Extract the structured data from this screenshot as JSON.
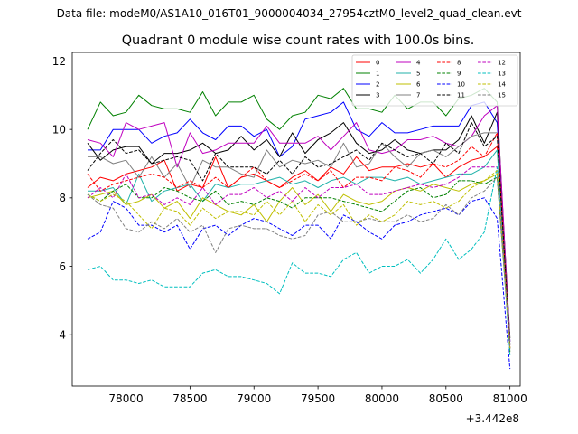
{
  "page": {
    "suptitle": "Data file: modeM0/AS1A10_016T01_9000004034_27954cztM0_level2_quad_clean.evt"
  },
  "chart_data": {
    "type": "line",
    "title": "Quadrant 0 module wise count rates with 100.0s bins.",
    "xlabel": "",
    "ylabel": "",
    "x_offset_label": "+3.442e8",
    "x_ticks": [
      78000,
      78500,
      79000,
      79500,
      80000,
      80500,
      81000
    ],
    "y_ticks": [
      4,
      6,
      8,
      10,
      12
    ],
    "xlim": [
      77580,
      81080
    ],
    "ylim": [
      2.5,
      12.25
    ],
    "grid": false,
    "legend": {
      "placement": "top-right",
      "columns": 4
    },
    "x": [
      77700,
      77800,
      77900,
      78000,
      78100,
      78200,
      78300,
      78400,
      78500,
      78600,
      78700,
      78800,
      78900,
      79000,
      79100,
      79200,
      79300,
      79400,
      79500,
      79600,
      79700,
      79800,
      79900,
      80000,
      80100,
      80200,
      80300,
      80400,
      80500,
      80600,
      80700,
      80800,
      80900,
      81000
    ],
    "series": [
      {
        "name": "0",
        "color": "#ff0000",
        "dash": "solid",
        "values": [
          8.3,
          8.6,
          8.5,
          8.7,
          8.8,
          8.9,
          9.1,
          8.2,
          8.4,
          8.3,
          9.2,
          8.3,
          8.6,
          8.7,
          8.5,
          8.3,
          8.6,
          8.8,
          8.5,
          8.9,
          8.7,
          9.2,
          8.8,
          8.9,
          8.9,
          9.0,
          8.9,
          9.0,
          8.6,
          8.9,
          9.1,
          9.2,
          9.5,
          3.6
        ]
      },
      {
        "name": "1",
        "color": "#008000",
        "dash": "solid",
        "values": [
          10.0,
          10.8,
          10.4,
          10.5,
          11.0,
          10.7,
          10.6,
          10.6,
          10.5,
          11.1,
          10.4,
          10.8,
          10.8,
          11.0,
          10.3,
          10.0,
          10.4,
          10.5,
          11.0,
          10.9,
          11.2,
          10.6,
          10.6,
          10.5,
          11.0,
          10.6,
          10.8,
          10.8,
          10.4,
          10.9,
          11.0,
          11.2,
          10.8,
          3.5
        ]
      },
      {
        "name": "2",
        "color": "#0000ff",
        "dash": "solid",
        "values": [
          9.4,
          9.4,
          10.0,
          10.0,
          10.0,
          9.6,
          9.8,
          9.9,
          10.3,
          9.9,
          9.7,
          10.1,
          10.1,
          9.8,
          10.0,
          9.2,
          9.5,
          10.3,
          10.4,
          10.5,
          10.8,
          10.0,
          9.8,
          10.2,
          9.9,
          9.9,
          10.0,
          10.1,
          10.1,
          10.1,
          10.7,
          10.8,
          10.2,
          3.8
        ]
      },
      {
        "name": "3",
        "color": "#000000",
        "dash": "solid",
        "values": [
          9.6,
          9.1,
          9.4,
          9.5,
          9.5,
          9.0,
          9.3,
          9.3,
          9.4,
          9.6,
          9.3,
          9.4,
          9.8,
          9.4,
          9.7,
          9.2,
          9.9,
          9.3,
          9.7,
          9.9,
          10.2,
          9.6,
          9.3,
          9.4,
          9.7,
          9.4,
          9.3,
          9.4,
          9.4,
          9.7,
          10.4,
          9.6,
          10.5,
          3.9
        ]
      },
      {
        "name": "4",
        "color": "#bf00bf",
        "dash": "solid",
        "values": [
          9.7,
          9.6,
          9.2,
          10.2,
          10.0,
          10.1,
          10.2,
          8.9,
          9.9,
          9.3,
          9.4,
          9.6,
          9.6,
          9.6,
          10.1,
          9.6,
          9.6,
          9.6,
          9.8,
          9.4,
          9.8,
          10.2,
          9.4,
          9.3,
          9.4,
          9.7,
          9.7,
          9.8,
          9.6,
          9.5,
          9.8,
          10.4,
          10.7,
          3.8
        ]
      },
      {
        "name": "5",
        "color": "#20b2aa",
        "dash": "solid",
        "values": [
          8.2,
          8.2,
          8.3,
          7.8,
          8.7,
          7.9,
          8.2,
          8.3,
          8.4,
          7.9,
          8.4,
          8.3,
          8.4,
          8.4,
          8.5,
          8.6,
          8.4,
          8.5,
          8.3,
          8.5,
          8.6,
          8.4,
          8.6,
          8.6,
          8.5,
          8.6,
          8.4,
          8.5,
          8.6,
          8.7,
          8.7,
          8.9,
          9.4,
          3.7
        ]
      },
      {
        "name": "6",
        "color": "#bfbf00",
        "dash": "solid",
        "values": [
          8.0,
          8.1,
          8.2,
          7.8,
          7.9,
          8.1,
          7.7,
          7.9,
          7.4,
          8.0,
          7.8,
          7.6,
          7.5,
          7.8,
          7.3,
          7.9,
          8.3,
          7.8,
          8.1,
          7.6,
          8.1,
          7.9,
          7.8,
          7.9,
          8.2,
          8.3,
          8.2,
          8.4,
          8.3,
          8.2,
          8.4,
          8.5,
          8.7,
          3.7
        ]
      },
      {
        "name": "7",
        "color": "#808080",
        "dash": "solid",
        "values": [
          9.2,
          9.2,
          9.0,
          9.1,
          8.6,
          9.2,
          8.6,
          9.0,
          8.3,
          9.1,
          8.9,
          8.9,
          8.7,
          8.6,
          9.4,
          8.9,
          9.1,
          9.0,
          9.1,
          8.9,
          9.6,
          8.9,
          9.0,
          9.6,
          9.2,
          8.9,
          9.3,
          9.4,
          9.2,
          9.5,
          9.8,
          9.9,
          9.9,
          3.8
        ]
      },
      {
        "name": "8",
        "color": "#ff0000",
        "dash": "dashed",
        "values": [
          8.7,
          8.2,
          8.4,
          8.5,
          8.6,
          8.7,
          8.6,
          8.3,
          8.5,
          8.3,
          8.6,
          8.3,
          8.6,
          8.9,
          8.5,
          8.3,
          8.5,
          8.7,
          8.5,
          8.8,
          8.3,
          8.6,
          8.6,
          8.5,
          8.9,
          8.8,
          8.6,
          9.0,
          8.9,
          9.1,
          9.5,
          9.2,
          9.9,
          3.6
        ]
      },
      {
        "name": "9",
        "color": "#008000",
        "dash": "dashed",
        "values": [
          8.1,
          7.9,
          8.2,
          8.4,
          8.0,
          8.0,
          8.3,
          8.2,
          8.0,
          7.9,
          8.2,
          7.8,
          7.9,
          7.8,
          8.0,
          7.9,
          7.7,
          8.0,
          8.0,
          8.0,
          7.9,
          7.8,
          7.7,
          7.6,
          7.9,
          8.2,
          8.3,
          8.0,
          8.1,
          8.5,
          8.5,
          8.4,
          8.6,
          3.6
        ]
      },
      {
        "name": "10",
        "color": "#0000ff",
        "dash": "dashed",
        "values": [
          6.8,
          7.0,
          7.9,
          7.7,
          7.2,
          7.2,
          7.0,
          7.2,
          6.5,
          7.1,
          7.2,
          6.9,
          7.2,
          7.4,
          7.3,
          7.1,
          6.9,
          7.2,
          7.2,
          6.8,
          7.5,
          7.3,
          7.0,
          6.8,
          7.2,
          7.3,
          7.5,
          7.6,
          7.7,
          7.5,
          7.9,
          8.0,
          7.4,
          3.0
        ]
      },
      {
        "name": "11",
        "color": "#000000",
        "dash": "dashed",
        "values": [
          8.8,
          9.3,
          9.7,
          9.3,
          9.4,
          9.0,
          9.1,
          9.2,
          9.1,
          8.5,
          9.3,
          8.9,
          8.9,
          8.9,
          8.7,
          9.1,
          8.7,
          9.2,
          8.9,
          9.0,
          9.2,
          9.4,
          9.1,
          9.6,
          9.4,
          9.2,
          9.3,
          9.0,
          9.6,
          9.3,
          10.2,
          9.5,
          9.8,
          3.7
        ]
      },
      {
        "name": "12",
        "color": "#bf00bf",
        "dash": "dashed",
        "values": [
          8.0,
          8.3,
          8.0,
          8.7,
          8.0,
          8.1,
          7.8,
          8.0,
          7.8,
          8.3,
          7.8,
          8.1,
          8.1,
          8.3,
          8.0,
          8.2,
          7.9,
          8.3,
          8.0,
          8.3,
          8.3,
          8.4,
          8.1,
          8.1,
          8.2,
          8.3,
          8.4,
          8.3,
          8.4,
          8.6,
          8.9,
          8.9,
          8.9,
          3.7
        ]
      },
      {
        "name": "13",
        "color": "#00bfbf",
        "dash": "dashed",
        "values": [
          5.9,
          6.0,
          5.6,
          5.6,
          5.5,
          5.6,
          5.4,
          5.4,
          5.4,
          5.8,
          5.9,
          5.7,
          5.7,
          5.6,
          5.5,
          5.2,
          6.1,
          5.8,
          5.8,
          5.7,
          6.2,
          6.4,
          5.8,
          6.0,
          6.0,
          6.2,
          5.8,
          6.2,
          6.8,
          6.2,
          6.5,
          7.0,
          8.9,
          3.4
        ]
      },
      {
        "name": "14",
        "color": "#bfbf00",
        "dash": "dashed",
        "values": [
          8.1,
          7.9,
          8.1,
          7.9,
          7.5,
          7.1,
          7.7,
          7.6,
          7.2,
          7.7,
          7.4,
          7.6,
          7.6,
          7.5,
          7.9,
          7.5,
          7.9,
          7.3,
          7.8,
          7.5,
          7.8,
          7.2,
          7.5,
          7.3,
          7.5,
          7.9,
          7.8,
          7.9,
          7.7,
          7.9,
          8.3,
          8.5,
          8.8,
          3.6
        ]
      },
      {
        "name": "15",
        "color": "#808080",
        "dash": "dashed",
        "values": [
          8.1,
          7.8,
          7.7,
          7.1,
          7.0,
          7.3,
          7.1,
          7.4,
          7.0,
          7.2,
          6.4,
          7.1,
          7.2,
          7.1,
          7.1,
          6.9,
          6.8,
          6.9,
          7.5,
          7.6,
          7.3,
          7.3,
          7.4,
          7.3,
          7.3,
          7.5,
          7.3,
          7.4,
          7.8,
          7.5,
          8.0,
          8.2,
          8.6,
          3.6
        ]
      }
    ]
  }
}
